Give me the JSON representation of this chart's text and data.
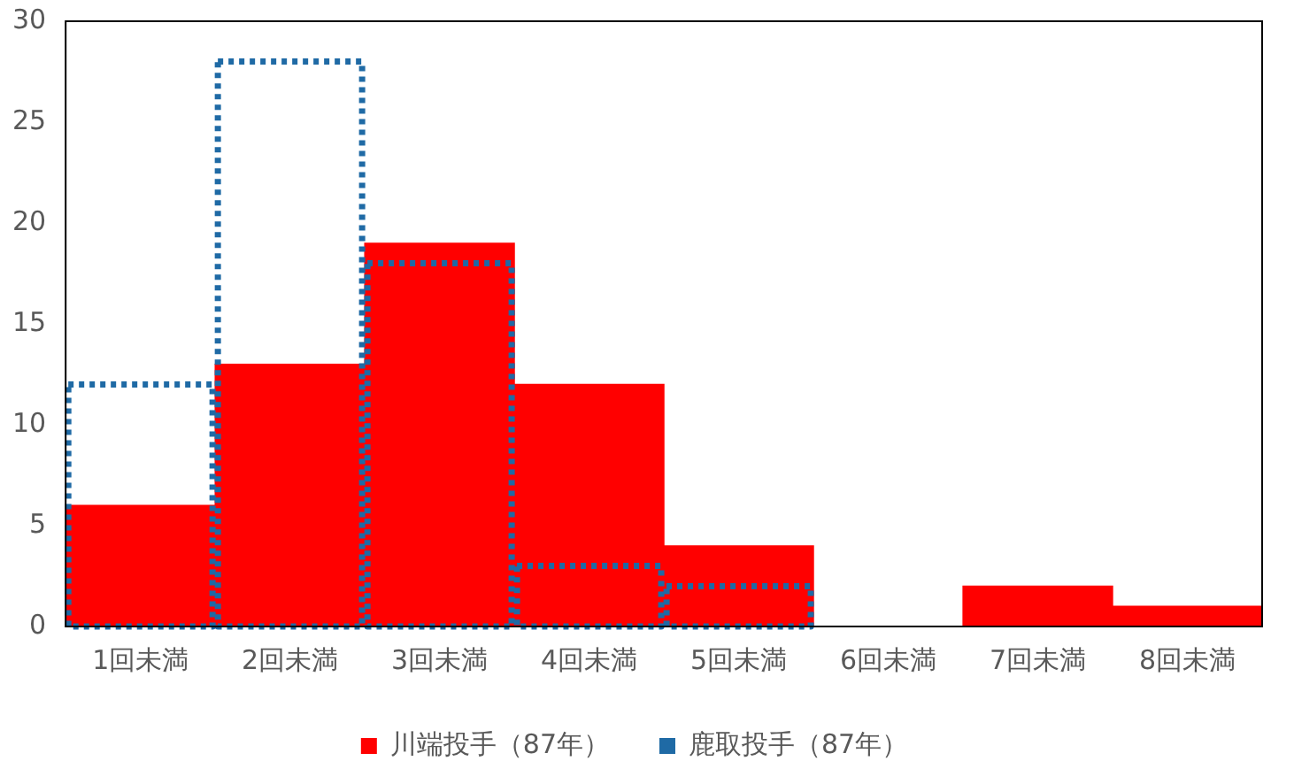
{
  "chart_data": {
    "type": "bar",
    "categories": [
      "1回未満",
      "2回未満",
      "3回未満",
      "4回未満",
      "5回未満",
      "6回未満",
      "7回未満",
      "8回未満"
    ],
    "series": [
      {
        "name": "川端投手（87年）",
        "color": "#ff0000",
        "values": [
          6,
          13,
          19,
          12,
          4,
          0,
          2,
          1
        ]
      },
      {
        "name": "鹿取投手（87年）",
        "color": "#1f6aa5",
        "line_style": "dotted",
        "values": [
          12,
          28,
          18,
          3,
          2,
          0,
          0,
          0
        ]
      }
    ],
    "ylim": [
      0,
      30
    ],
    "yticks": [
      0,
      5,
      10,
      15,
      20,
      25,
      30
    ],
    "grid": false,
    "legend": "bottom"
  }
}
